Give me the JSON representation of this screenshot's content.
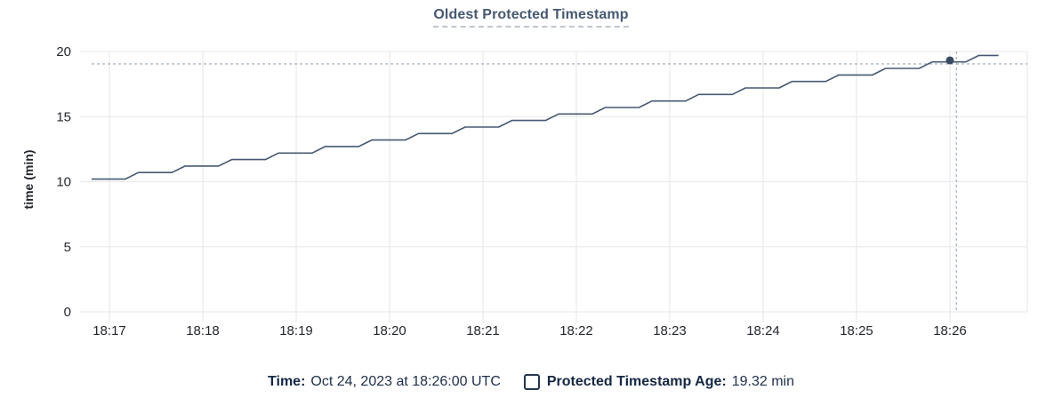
{
  "chart_data": {
    "type": "line",
    "title": "Oldest Protected Timestamp",
    "ylabel": "time (min)",
    "ylim": [
      0,
      20
    ],
    "y_ticks": [
      0,
      5,
      10,
      15,
      20
    ],
    "x_ticks": [
      "18:17",
      "18:18",
      "18:19",
      "18:20",
      "18:21",
      "18:22",
      "18:23",
      "18:24",
      "18:25",
      "18:26"
    ],
    "grid": true,
    "legend_position": "bottom",
    "series": [
      {
        "name": "Protected Timestamp Age",
        "color": "#475872",
        "points_unit": "minutes offset from 18:17, value in min",
        "points": [
          [
            -0.19,
            10.2
          ],
          [
            0.17,
            10.2
          ],
          [
            0.31,
            10.7
          ],
          [
            0.67,
            10.7
          ],
          [
            0.81,
            11.2
          ],
          [
            1.17,
            11.2
          ],
          [
            1.31,
            11.7
          ],
          [
            1.67,
            11.7
          ],
          [
            1.81,
            12.2
          ],
          [
            2.17,
            12.2
          ],
          [
            2.31,
            12.7
          ],
          [
            2.67,
            12.7
          ],
          [
            2.81,
            13.2
          ],
          [
            3.17,
            13.2
          ],
          [
            3.31,
            13.7
          ],
          [
            3.67,
            13.7
          ],
          [
            3.81,
            14.2
          ],
          [
            4.17,
            14.2
          ],
          [
            4.31,
            14.7
          ],
          [
            4.67,
            14.7
          ],
          [
            4.81,
            15.2
          ],
          [
            5.17,
            15.2
          ],
          [
            5.31,
            15.7
          ],
          [
            5.67,
            15.7
          ],
          [
            5.81,
            16.2
          ],
          [
            6.17,
            16.2
          ],
          [
            6.31,
            16.7
          ],
          [
            6.67,
            16.7
          ],
          [
            6.81,
            17.2
          ],
          [
            7.17,
            17.2
          ],
          [
            7.31,
            17.7
          ],
          [
            7.67,
            17.7
          ],
          [
            7.81,
            18.2
          ],
          [
            8.17,
            18.2
          ],
          [
            8.31,
            18.7
          ],
          [
            8.67,
            18.7
          ],
          [
            8.81,
            19.2
          ],
          [
            9.17,
            19.2
          ],
          [
            9.31,
            19.7
          ],
          [
            9.52,
            19.7
          ]
        ]
      }
    ],
    "crosshair": {
      "hover_time": "18:26:00",
      "vline_t_min": 9.07,
      "point_t_min": 9.0,
      "point_value": 19.32,
      "hline_value": 19.05
    }
  },
  "legend": {
    "time_label": "Time:",
    "time_value": "Oct 24, 2023 at 18:26:00 UTC",
    "series_checkbox_state": "unchecked",
    "series_label": "Protected Timestamp Age:",
    "series_value": "19.32 min"
  },
  "colors": {
    "line": "#475872",
    "title": "#475872",
    "grid": "#ececec",
    "dashed_guides": "#a9b8c5",
    "tick_text": "#24282e",
    "legend_text": "#152743",
    "marker": "#394a63",
    "checkbox_border": "#26364f"
  }
}
